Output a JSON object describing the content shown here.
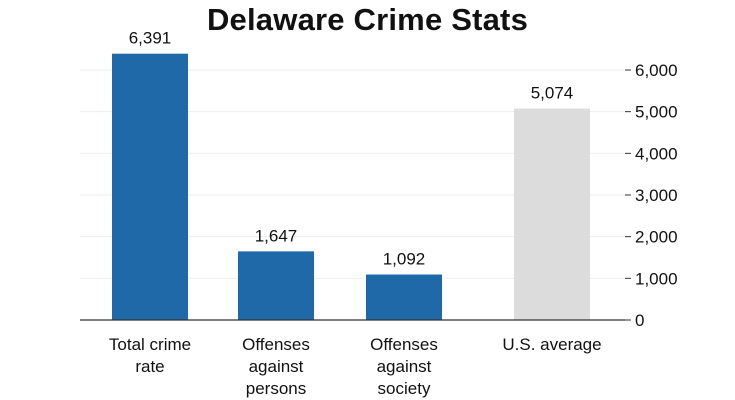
{
  "chart_data": {
    "type": "bar",
    "title": "Delaware Crime Stats",
    "categories": [
      [
        "Total crime",
        "rate"
      ],
      [
        "Offenses",
        "against",
        "persons"
      ],
      [
        "Offenses",
        "against",
        "society"
      ],
      [
        "U.S. average"
      ]
    ],
    "values": [
      6391,
      1647,
      1092,
      5074
    ],
    "value_labels": [
      "6,391",
      "1,647",
      "1,092",
      "5,074"
    ],
    "bar_colors": [
      "#1f69a8",
      "#1f69a8",
      "#1f69a8",
      "#dcdcdc"
    ],
    "yaxis_position": "right",
    "ylim": [
      0,
      6000
    ],
    "yticks": [
      0,
      1000,
      2000,
      3000,
      4000,
      5000,
      6000
    ],
    "ytick_labels": [
      "0",
      "1,000",
      "2,000",
      "3,000",
      "4,000",
      "5,000",
      "6,000"
    ],
    "grid": true,
    "grid_color": "#eeeeee",
    "axis_color": "#333333"
  }
}
